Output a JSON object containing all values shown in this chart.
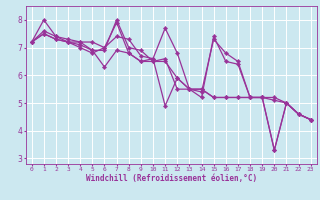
{
  "xlabel": "Windchill (Refroidissement éolien,°C)",
  "x_hours": [
    0,
    1,
    2,
    3,
    4,
    5,
    6,
    7,
    8,
    9,
    10,
    11,
    12,
    13,
    14,
    15,
    16,
    17,
    18,
    19,
    20,
    21,
    22,
    23
  ],
  "line1": [
    7.2,
    7.5,
    7.3,
    7.2,
    7.1,
    6.9,
    6.3,
    6.9,
    6.8,
    6.5,
    6.6,
    4.9,
    5.9,
    5.5,
    5.4,
    7.3,
    6.8,
    6.5,
    5.2,
    5.2,
    3.3,
    5.0,
    4.6,
    4.4
  ],
  "line2": [
    7.2,
    7.6,
    7.4,
    7.2,
    7.0,
    6.8,
    7.0,
    7.9,
    6.8,
    6.5,
    6.5,
    6.5,
    5.9,
    5.5,
    5.5,
    5.2,
    5.2,
    5.2,
    5.2,
    5.2,
    5.2,
    5.0,
    4.6,
    4.4
  ],
  "line3": [
    7.2,
    7.5,
    7.3,
    7.2,
    7.2,
    7.2,
    7.0,
    7.4,
    7.3,
    6.7,
    6.6,
    7.7,
    6.8,
    5.5,
    5.5,
    5.2,
    5.2,
    5.2,
    5.2,
    5.2,
    5.1,
    5.0,
    4.6,
    4.4
  ],
  "line4": [
    7.2,
    8.0,
    7.4,
    7.3,
    7.2,
    6.9,
    6.9,
    8.0,
    7.0,
    6.9,
    6.5,
    6.6,
    5.5,
    5.5,
    5.2,
    7.4,
    6.5,
    6.4,
    5.2,
    5.2,
    3.3,
    5.0,
    4.6,
    4.4
  ],
  "bg_color": "#cce8f0",
  "grid_color": "#ffffff",
  "line_color": "#993399",
  "ylim": [
    2.8,
    8.5
  ],
  "yticks": [
    3,
    4,
    5,
    6,
    7,
    8
  ],
  "xlabel_fontsize": 5.5,
  "xtick_fontsize": 4.5,
  "ytick_fontsize": 5.5,
  "linewidth": 0.9,
  "markersize": 2.2
}
